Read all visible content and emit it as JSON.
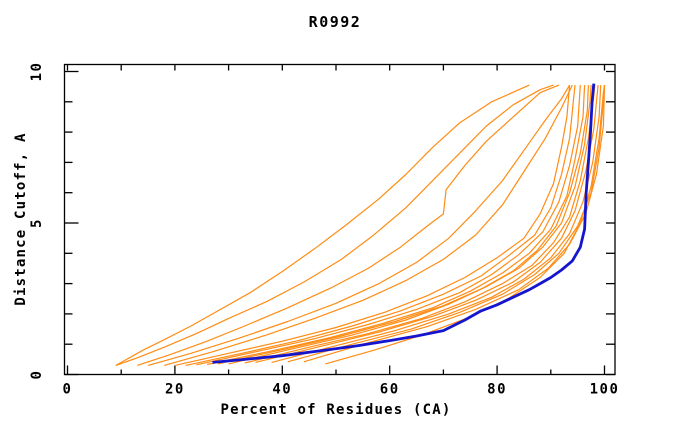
{
  "chart_data": {
    "type": "line",
    "title": "R0992",
    "xlabel": "Percent of Residues (CA)",
    "ylabel": "Distance Cutoff, A",
    "xlim": [
      0,
      100
    ],
    "ylim": [
      0,
      10
    ],
    "grid": false,
    "legend": false,
    "x_axis": {
      "major_ticks": [
        0,
        20,
        40,
        60,
        80,
        100
      ],
      "minor_ticks": [
        10,
        30,
        50,
        70,
        90
      ],
      "tick_labels": [
        "0",
        "20",
        "40",
        "60",
        "80",
        "100"
      ]
    },
    "y_axis": {
      "major_ticks": [
        0,
        5,
        10
      ],
      "minor_ticks": [
        1,
        2,
        3,
        4,
        6,
        7,
        8,
        9
      ],
      "tick_labels": [
        "0",
        "5",
        "10"
      ]
    },
    "colors": {
      "model": "#ff8c14",
      "highlight": "#1515cd",
      "frame": "#000000",
      "text": "#000000",
      "background": "#ffffff"
    },
    "series": [
      {
        "id": "model-01",
        "role": "model",
        "points": [
          [
            9,
            0.3
          ],
          [
            11,
            0.5
          ],
          [
            14,
            0.8
          ],
          [
            18,
            1.15
          ],
          [
            23,
            1.6
          ],
          [
            28,
            2.1
          ],
          [
            34,
            2.7
          ],
          [
            40,
            3.4
          ],
          [
            46,
            4.15
          ],
          [
            52,
            4.95
          ],
          [
            58,
            5.8
          ],
          [
            63,
            6.6
          ],
          [
            68,
            7.5
          ],
          [
            73,
            8.3
          ],
          [
            79,
            9.0
          ],
          [
            86,
            9.55
          ]
        ]
      },
      {
        "id": "model-02",
        "role": "model",
        "points": [
          [
            9,
            0.3
          ],
          [
            13,
            0.55
          ],
          [
            18,
            0.9
          ],
          [
            24,
            1.35
          ],
          [
            30,
            1.85
          ],
          [
            37,
            2.4
          ],
          [
            44,
            3.05
          ],
          [
            51,
            3.8
          ],
          [
            57,
            4.6
          ],
          [
            63,
            5.5
          ],
          [
            68,
            6.4
          ],
          [
            73,
            7.3
          ],
          [
            78,
            8.2
          ],
          [
            83,
            8.9
          ],
          [
            88,
            9.4
          ],
          [
            90.5,
            9.55
          ]
        ]
      },
      {
        "id": "model-03",
        "role": "model",
        "points": [
          [
            13,
            0.3
          ],
          [
            19,
            0.65
          ],
          [
            26,
            1.1
          ],
          [
            33,
            1.6
          ],
          [
            41,
            2.2
          ],
          [
            49,
            2.85
          ],
          [
            56,
            3.5
          ],
          [
            62,
            4.2
          ],
          [
            67,
            4.9
          ],
          [
            70,
            5.3
          ],
          [
            70.5,
            6.1
          ],
          [
            74,
            6.9
          ],
          [
            78,
            7.7
          ],
          [
            83,
            8.5
          ],
          [
            88,
            9.3
          ],
          [
            91.5,
            9.55
          ]
        ]
      },
      {
        "id": "model-04",
        "role": "model",
        "points": [
          [
            15,
            0.3
          ],
          [
            23,
            0.7
          ],
          [
            32,
            1.2
          ],
          [
            41,
            1.75
          ],
          [
            50,
            2.35
          ],
          [
            58,
            3.0
          ],
          [
            65,
            3.7
          ],
          [
            71,
            4.5
          ],
          [
            76,
            5.4
          ],
          [
            81,
            6.4
          ],
          [
            85,
            7.4
          ],
          [
            89,
            8.4
          ],
          [
            92,
            9.1
          ],
          [
            93.5,
            9.55
          ]
        ]
      },
      {
        "id": "model-05",
        "role": "model",
        "points": [
          [
            18,
            0.3
          ],
          [
            27,
            0.75
          ],
          [
            37,
            1.3
          ],
          [
            46,
            1.85
          ],
          [
            55,
            2.45
          ],
          [
            63,
            3.1
          ],
          [
            70,
            3.8
          ],
          [
            76,
            4.6
          ],
          [
            81,
            5.6
          ],
          [
            85,
            6.7
          ],
          [
            89,
            7.8
          ],
          [
            92,
            8.8
          ],
          [
            94,
            9.55
          ]
        ]
      },
      {
        "id": "model-06",
        "role": "model",
        "points": [
          [
            20,
            0.3
          ],
          [
            30,
            0.7
          ],
          [
            40,
            1.1
          ],
          [
            50,
            1.55
          ],
          [
            59,
            2.05
          ],
          [
            67,
            2.6
          ],
          [
            74,
            3.2
          ],
          [
            80,
            3.85
          ],
          [
            85,
            4.5
          ],
          [
            88,
            5.3
          ],
          [
            90.5,
            6.3
          ],
          [
            92,
            7.5
          ],
          [
            93,
            8.5
          ],
          [
            93.5,
            9.55
          ]
        ]
      },
      {
        "id": "model-07",
        "role": "model",
        "points": [
          [
            22,
            0.3
          ],
          [
            33,
            0.72
          ],
          [
            43,
            1.12
          ],
          [
            53,
            1.6
          ],
          [
            62,
            2.1
          ],
          [
            70,
            2.65
          ],
          [
            77,
            3.25
          ],
          [
            82,
            3.9
          ],
          [
            87,
            4.6
          ],
          [
            90,
            5.5
          ],
          [
            92,
            6.6
          ],
          [
            93.5,
            7.8
          ],
          [
            94.5,
            9.55
          ]
        ]
      },
      {
        "id": "model-08",
        "role": "model",
        "points": [
          [
            24,
            0.32
          ],
          [
            35,
            0.75
          ],
          [
            46,
            1.18
          ],
          [
            56,
            1.65
          ],
          [
            65,
            2.15
          ],
          [
            73,
            2.7
          ],
          [
            79,
            3.3
          ],
          [
            84,
            3.95
          ],
          [
            88.5,
            4.7
          ],
          [
            91.5,
            5.7
          ],
          [
            93.5,
            6.9
          ],
          [
            95,
            8.2
          ],
          [
            95.5,
            9.55
          ]
        ]
      },
      {
        "id": "model-09",
        "role": "model",
        "points": [
          [
            26,
            0.33
          ],
          [
            38,
            0.78
          ],
          [
            49,
            1.22
          ],
          [
            59,
            1.7
          ],
          [
            68,
            2.2
          ],
          [
            75,
            2.75
          ],
          [
            81,
            3.35
          ],
          [
            86,
            4.0
          ],
          [
            90,
            4.8
          ],
          [
            93,
            5.9
          ],
          [
            94.5,
            7.1
          ],
          [
            96,
            8.5
          ],
          [
            96.3,
            9.55
          ]
        ]
      },
      {
        "id": "model-10",
        "role": "model",
        "points": [
          [
            28,
            0.35
          ],
          [
            40,
            0.82
          ],
          [
            51,
            1.27
          ],
          [
            61,
            1.75
          ],
          [
            70,
            2.27
          ],
          [
            77,
            2.82
          ],
          [
            83,
            3.42
          ],
          [
            87.5,
            4.1
          ],
          [
            91,
            4.9
          ],
          [
            93.5,
            6.0
          ],
          [
            95.5,
            7.3
          ],
          [
            96.8,
            8.7
          ],
          [
            97,
            9.55
          ]
        ]
      },
      {
        "id": "model-11",
        "role": "model",
        "points": [
          [
            30,
            0.35
          ],
          [
            42,
            0.85
          ],
          [
            53,
            1.3
          ],
          [
            63,
            1.8
          ],
          [
            71,
            2.32
          ],
          [
            78,
            2.9
          ],
          [
            84,
            3.5
          ],
          [
            88.5,
            4.2
          ],
          [
            92,
            5.0
          ],
          [
            94.5,
            6.2
          ],
          [
            96.3,
            7.6
          ],
          [
            97.3,
            9.0
          ],
          [
            97.5,
            9.55
          ]
        ]
      },
      {
        "id": "model-12",
        "role": "model",
        "points": [
          [
            33,
            0.38
          ],
          [
            45,
            0.9
          ],
          [
            56,
            1.35
          ],
          [
            66,
            1.85
          ],
          [
            74,
            2.4
          ],
          [
            81,
            3.0
          ],
          [
            86.5,
            3.6
          ],
          [
            90.5,
            4.35
          ],
          [
            93.5,
            5.2
          ],
          [
            95.5,
            6.4
          ],
          [
            97,
            7.8
          ],
          [
            98,
            9.2
          ],
          [
            98.2,
            9.55
          ]
        ]
      },
      {
        "id": "model-13",
        "role": "model",
        "points": [
          [
            35,
            0.4
          ],
          [
            47,
            0.92
          ],
          [
            58,
            1.4
          ],
          [
            68,
            1.92
          ],
          [
            76,
            2.45
          ],
          [
            83,
            3.05
          ],
          [
            88,
            3.7
          ],
          [
            92,
            4.5
          ],
          [
            94.5,
            5.4
          ],
          [
            96.5,
            6.7
          ],
          [
            98,
            8.1
          ],
          [
            98.8,
            9.55
          ]
        ]
      },
      {
        "id": "model-14",
        "role": "model",
        "points": [
          [
            38,
            0.4
          ],
          [
            50,
            0.95
          ],
          [
            61,
            1.45
          ],
          [
            71,
            2.0
          ],
          [
            79,
            2.55
          ],
          [
            85,
            3.15
          ],
          [
            90,
            3.85
          ],
          [
            93.5,
            4.65
          ],
          [
            96,
            5.7
          ],
          [
            97.8,
            7.0
          ],
          [
            99,
            8.5
          ],
          [
            99.3,
            9.55
          ]
        ]
      },
      {
        "id": "model-15",
        "role": "model",
        "points": [
          [
            41,
            0.42
          ],
          [
            53,
            1.0
          ],
          [
            64,
            1.5
          ],
          [
            73,
            2.05
          ],
          [
            81,
            2.65
          ],
          [
            87,
            3.3
          ],
          [
            91.5,
            4.0
          ],
          [
            95,
            4.9
          ],
          [
            97.5,
            6.0
          ],
          [
            99,
            7.5
          ],
          [
            99.8,
            9.0
          ],
          [
            100,
            9.55
          ]
        ]
      },
      {
        "id": "model-16",
        "role": "model",
        "points": [
          [
            44,
            0.42
          ],
          [
            56,
            1.05
          ],
          [
            67,
            1.58
          ],
          [
            76,
            2.15
          ],
          [
            84,
            2.8
          ],
          [
            89.5,
            3.5
          ],
          [
            93.5,
            4.3
          ],
          [
            96.5,
            5.3
          ],
          [
            98.5,
            6.6
          ],
          [
            99.8,
            8.2
          ],
          [
            100,
            9.55
          ]
        ]
      },
      {
        "id": "model-17",
        "role": "model",
        "points": [
          [
            48,
            0.35
          ],
          [
            57,
            0.8
          ],
          [
            66,
            1.3
          ],
          [
            75,
            1.9
          ],
          [
            82,
            2.5
          ],
          [
            88,
            3.2
          ],
          [
            92.5,
            4.0
          ],
          [
            95.5,
            5.0
          ],
          [
            97.5,
            6.2
          ],
          [
            99,
            7.8
          ],
          [
            99.8,
            9.3
          ],
          [
            100,
            9.55
          ]
        ]
      },
      {
        "id": "highlight-model",
        "role": "highlight",
        "points": [
          [
            27,
            0.4
          ],
          [
            33,
            0.5
          ],
          [
            40,
            0.62
          ],
          [
            47,
            0.78
          ],
          [
            54,
            0.95
          ],
          [
            60,
            1.12
          ],
          [
            65,
            1.27
          ],
          [
            70,
            1.45
          ],
          [
            74,
            1.8
          ],
          [
            77,
            2.1
          ],
          [
            80,
            2.3
          ],
          [
            83,
            2.55
          ],
          [
            86,
            2.8
          ],
          [
            88,
            3.0
          ],
          [
            90,
            3.2
          ],
          [
            92,
            3.45
          ],
          [
            94,
            3.75
          ],
          [
            95.5,
            4.2
          ],
          [
            96.3,
            4.8
          ],
          [
            96.6,
            6.0
          ],
          [
            97,
            7.0
          ],
          [
            97.4,
            8.0
          ],
          [
            97.7,
            9.0
          ],
          [
            98,
            9.6
          ]
        ]
      }
    ]
  }
}
